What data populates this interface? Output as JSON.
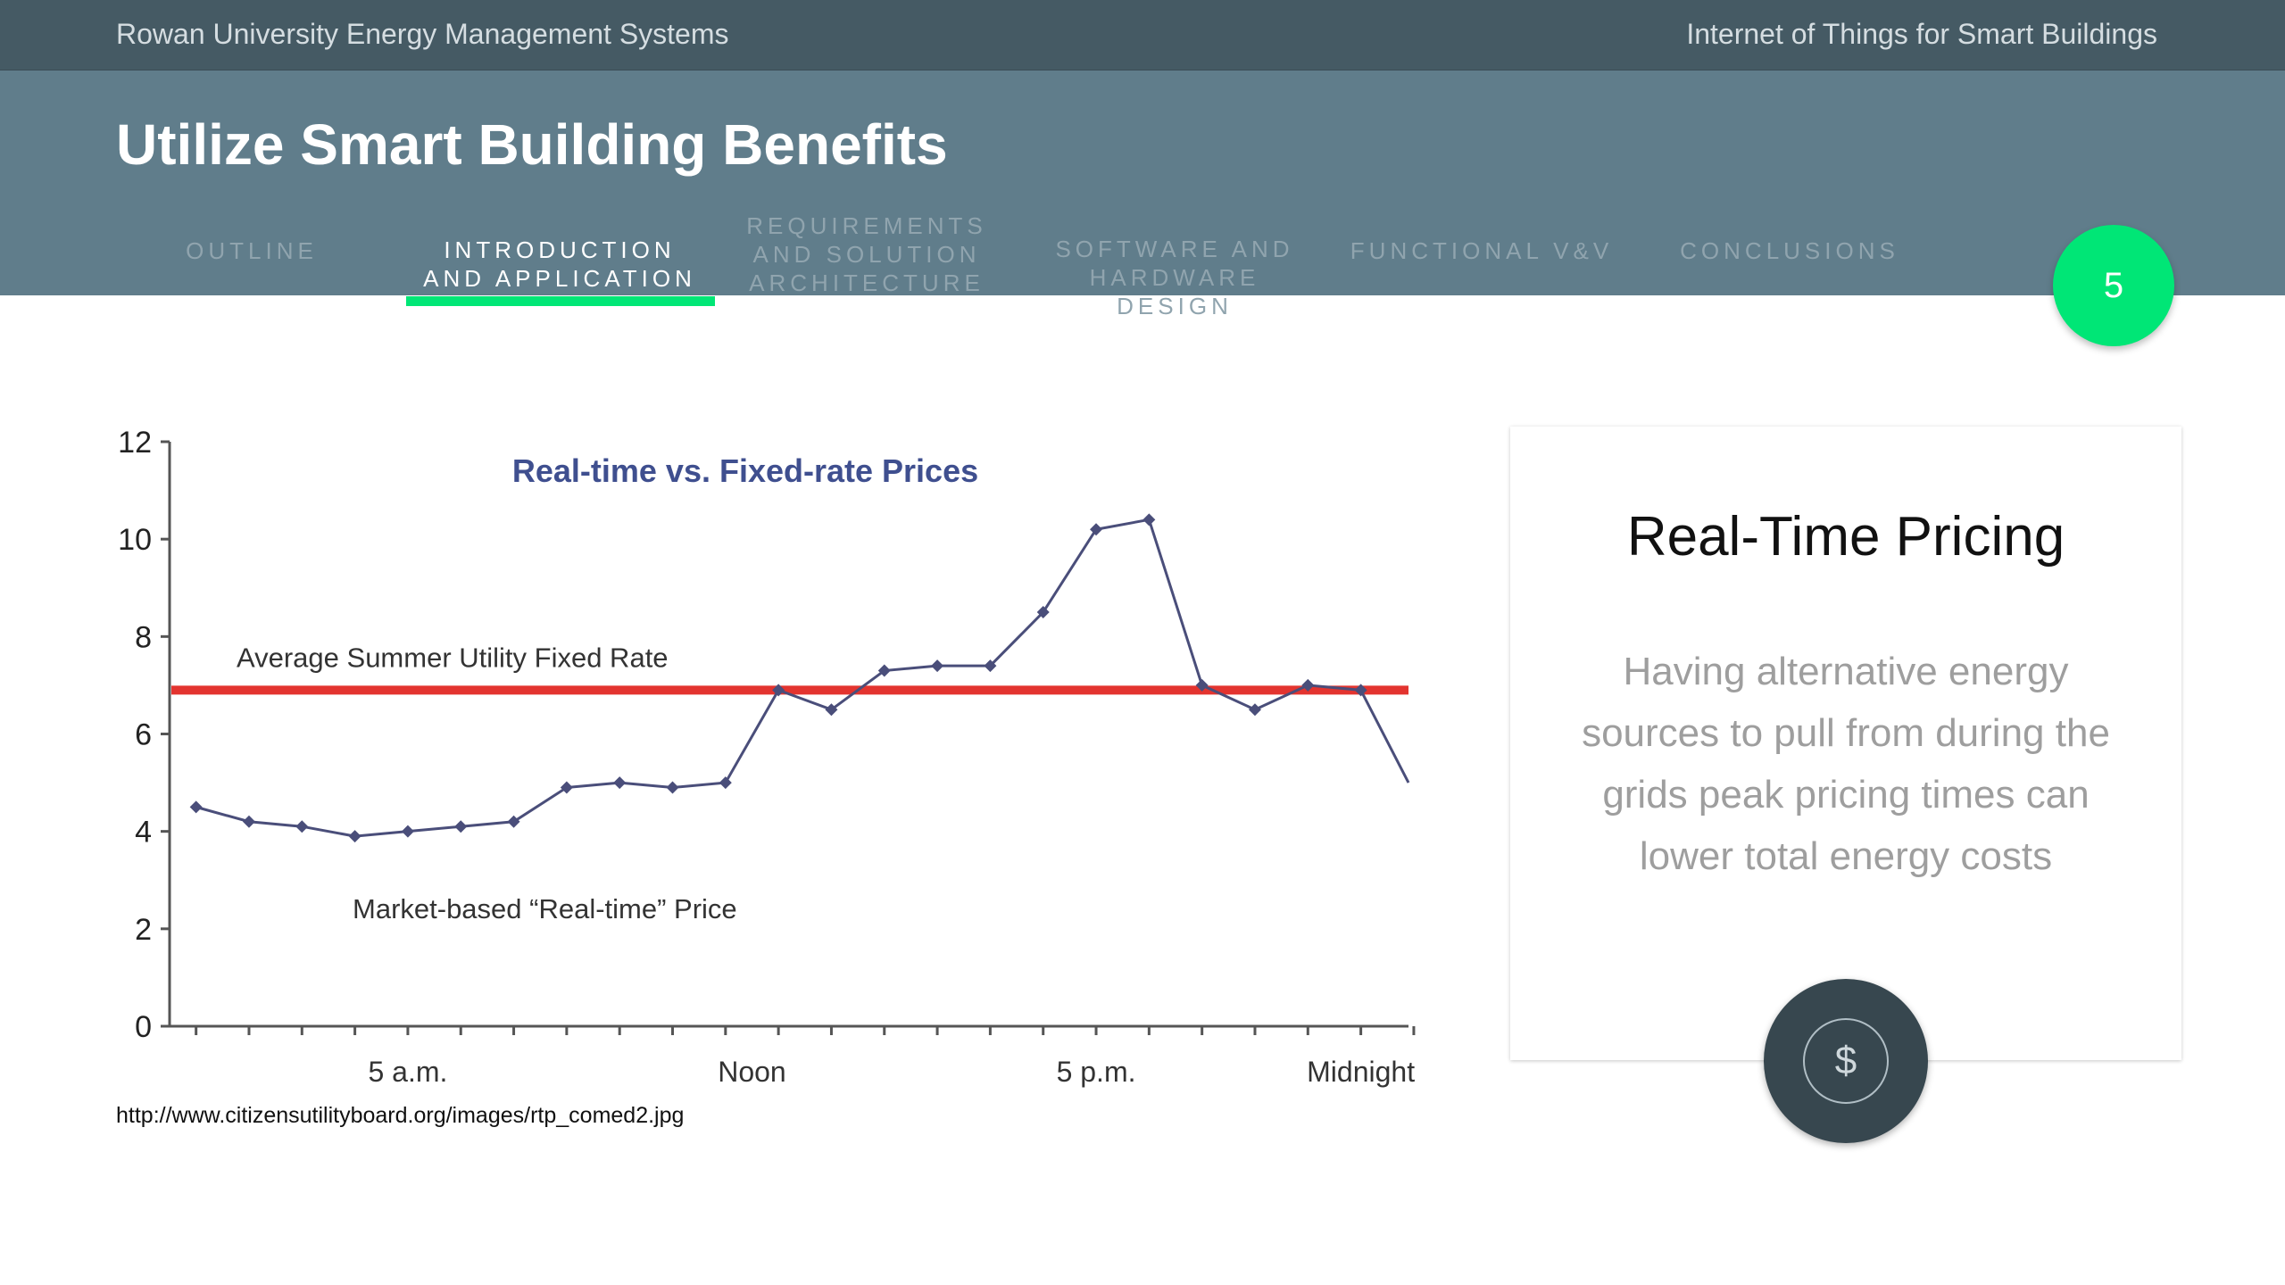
{
  "topbar": {
    "left_text": "Rowan University Energy Management Systems",
    "right_text": "Internet of Things for Smart Buildings"
  },
  "header": {
    "title": "Utilize Smart Building Benefits",
    "page_number": "5",
    "tabs": [
      {
        "label": "OUTLINE",
        "active": false
      },
      {
        "label": "INTRODUCTION AND APPLICATION",
        "active": true
      },
      {
        "label": "REQUIREMENTS AND SOLUTION ARCHITECTURE",
        "active": false
      },
      {
        "label": "SOFTWARE AND HARDWARE DESIGN",
        "active": false
      },
      {
        "label": "FUNCTIONAL V&V",
        "active": false
      },
      {
        "label": "CONCLUSIONS",
        "active": false
      }
    ],
    "accent_color": "#00e676"
  },
  "chart_data": {
    "type": "line",
    "title": "Real-time vs. Fixed-rate Prices",
    "ylim": [
      0,
      12
    ],
    "yticks": [
      "0",
      "2",
      "4",
      "6",
      "8",
      "10",
      "12"
    ],
    "xlim": [
      0,
      23.4
    ],
    "xtick_labels": [
      {
        "label": "5 a.m.",
        "x": 4.5
      },
      {
        "label": "Noon",
        "x": 11
      },
      {
        "label": "5 p.m.",
        "x": 17.5
      },
      {
        "label": "Midnight",
        "x": 22.5
      }
    ],
    "fixed_rate": {
      "label": "Average Summer Utility Fixed Rate",
      "value": 6.9,
      "color": "#e3342f"
    },
    "series": [
      {
        "name": "Market-based “Real-time” Price",
        "color": "#4a4e7a",
        "x": [
          0.5,
          1.5,
          2.5,
          3.5,
          4.5,
          5.5,
          6.5,
          7.5,
          8.5,
          9.5,
          10.5,
          11.5,
          12.5,
          13.5,
          14.5,
          15.5,
          16.5,
          17.5,
          18.5,
          19.5,
          20.5,
          21.5,
          22.5,
          23.4
        ],
        "values": [
          4.5,
          4.2,
          4.1,
          3.9,
          4.0,
          4.1,
          4.2,
          4.9,
          5.0,
          4.9,
          5.0,
          6.9,
          6.5,
          7.3,
          7.4,
          7.4,
          8.5,
          10.2,
          10.4,
          7.0,
          6.5,
          7.0,
          6.9,
          5.0
        ]
      }
    ]
  },
  "source_url": "http://www.citizensutilityboard.org/images/rtp_comed2.jpg",
  "card": {
    "title": "Real-Time Pricing",
    "body": "Having alternative energy sources to pull from during the grids peak pricing times can lower total energy costs",
    "icon": "dollar-icon",
    "icon_glyph": "$"
  }
}
